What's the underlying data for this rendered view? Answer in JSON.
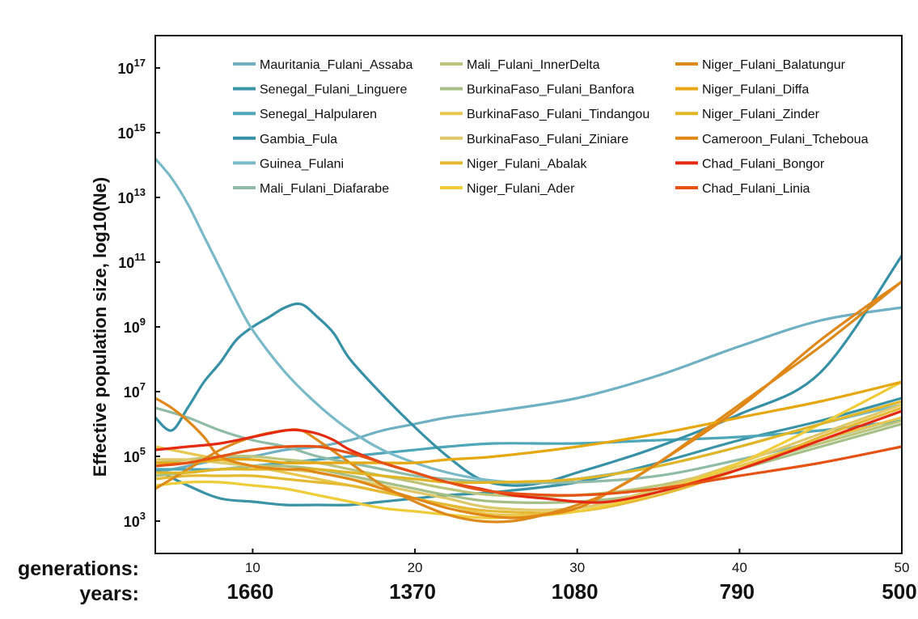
{
  "chart_data": {
    "type": "line",
    "ylabel": "Effective population size, log10(Ne)",
    "yscale": "log10",
    "ylim": [
      2.0,
      18.0
    ],
    "xlim": [
      4,
      50
    ],
    "y_ticks": [
      {
        "exp": 3,
        "base": "10",
        "power": "3"
      },
      {
        "exp": 5,
        "base": "10",
        "power": "5"
      },
      {
        "exp": 7,
        "base": "10",
        "power": "7"
      },
      {
        "exp": 9,
        "base": "10",
        "power": "9"
      },
      {
        "exp": 11,
        "base": "10",
        "power": "11"
      },
      {
        "exp": 13,
        "base": "10",
        "power": "13"
      },
      {
        "exp": 15,
        "base": "10",
        "power": "15"
      },
      {
        "exp": 17,
        "base": "10",
        "power": "17"
      }
    ],
    "x_ticks": [
      {
        "gen": 10,
        "label": "10",
        "years": "1660"
      },
      {
        "gen": 20,
        "label": "20",
        "years": "1370"
      },
      {
        "gen": 30,
        "label": "30",
        "years": "1080"
      },
      {
        "gen": 40,
        "label": "40",
        "years": "790"
      },
      {
        "gen": 50,
        "label": "50",
        "years": "500"
      }
    ],
    "generations_label": "generations:",
    "years_label": "years:",
    "legend_position": "top",
    "series": [
      {
        "name": "Mauritania_Fulani_Assaba",
        "color": "#6fb0c2",
        "x": [
          4,
          6,
          8,
          10,
          12,
          14,
          16,
          18,
          20,
          22,
          25,
          30,
          35,
          40,
          45,
          50
        ],
        "y": [
          4.5,
          4.7,
          4.9,
          5.0,
          5.2,
          5.3,
          5.5,
          5.8,
          6.0,
          6.2,
          6.4,
          6.8,
          7.5,
          8.4,
          9.2,
          9.6
        ]
      },
      {
        "name": "Senegal_Fulani_Linguere",
        "color": "#3a94a6",
        "x": [
          4,
          6,
          8,
          10,
          12,
          14,
          16,
          18,
          20,
          22,
          25,
          30,
          35,
          40,
          45,
          50
        ],
        "y": [
          4.6,
          4.1,
          3.7,
          3.6,
          3.5,
          3.5,
          3.5,
          3.6,
          3.7,
          3.8,
          3.9,
          4.2,
          4.8,
          5.5,
          6.1,
          6.8
        ]
      },
      {
        "name": "Senegal_Halpularen",
        "color": "#4ea7b8",
        "x": [
          4,
          6,
          8,
          10,
          12,
          14,
          16,
          18,
          20,
          22,
          25,
          30,
          35,
          40,
          45,
          50
        ],
        "y": [
          4.6,
          4.6,
          4.6,
          4.7,
          4.8,
          4.9,
          5.0,
          5.1,
          5.2,
          5.3,
          5.4,
          5.4,
          5.5,
          5.6,
          5.8,
          6.1
        ]
      },
      {
        "name": "Gambia_Fula",
        "color": "#3691a6",
        "x": [
          4,
          5,
          6,
          7,
          8,
          9,
          10,
          11,
          12,
          13,
          14,
          15,
          16,
          18,
          20,
          22,
          24,
          26,
          28,
          30,
          32,
          35,
          40,
          45,
          50
        ],
        "y": [
          6.2,
          5.8,
          6.5,
          7.3,
          7.9,
          8.6,
          9.0,
          9.3,
          9.6,
          9.7,
          9.3,
          8.8,
          8.0,
          6.9,
          5.9,
          5.0,
          4.3,
          4.1,
          4.2,
          4.5,
          4.8,
          5.3,
          6.3,
          7.6,
          11.2
        ]
      },
      {
        "name": "Guinea_Fulani",
        "color": "#79b9c8",
        "x": [
          4,
          5,
          6,
          7,
          8,
          9,
          10,
          12,
          14,
          16,
          18,
          20,
          22,
          24,
          26,
          28,
          30,
          35,
          40,
          45,
          50
        ],
        "y": [
          14.2,
          13.6,
          12.8,
          11.8,
          10.8,
          9.8,
          8.9,
          7.6,
          6.6,
          5.8,
          5.2,
          4.8,
          4.5,
          4.3,
          4.2,
          4.2,
          4.3,
          4.7,
          5.3,
          6.0,
          6.6
        ]
      },
      {
        "name": "Mali_Fulani_Diafarabe",
        "color": "#8fbba7",
        "x": [
          4,
          6,
          8,
          10,
          12,
          14,
          16,
          18,
          20,
          22,
          25,
          30,
          35,
          40,
          45,
          50
        ],
        "y": [
          6.5,
          6.2,
          5.8,
          5.5,
          5.3,
          5.0,
          4.8,
          4.6,
          4.4,
          4.3,
          4.2,
          4.2,
          4.4,
          4.9,
          5.5,
          6.2
        ]
      },
      {
        "name": "Mali_Fulani_InnerDelta",
        "color": "#bcc47a",
        "x": [
          4,
          6,
          8,
          10,
          12,
          14,
          16,
          18,
          20,
          22,
          25,
          30,
          35,
          40,
          45,
          50
        ],
        "y": [
          4.8,
          4.9,
          5.0,
          5.0,
          4.9,
          4.8,
          4.6,
          4.4,
          4.2,
          4.0,
          3.8,
          3.8,
          4.1,
          4.7,
          5.4,
          6.1
        ]
      },
      {
        "name": "BurkinaFaso_Fulani_Banfora",
        "color": "#a6bf86",
        "x": [
          4,
          6,
          8,
          10,
          12,
          14,
          16,
          18,
          20,
          22,
          25,
          30,
          35,
          40,
          45,
          50
        ],
        "y": [
          4.4,
          4.5,
          4.6,
          4.7,
          4.7,
          4.6,
          4.4,
          4.2,
          4.0,
          3.8,
          3.6,
          3.6,
          3.9,
          4.6,
          5.3,
          6.0
        ]
      },
      {
        "name": "BurkinaFaso_Fulani_Tindangou",
        "color": "#e9c64e",
        "x": [
          4,
          6,
          8,
          10,
          12,
          14,
          16,
          18,
          20,
          22,
          25,
          30,
          35,
          40,
          45,
          50
        ],
        "y": [
          5.3,
          5.1,
          4.9,
          4.7,
          4.5,
          4.3,
          4.1,
          3.9,
          3.7,
          3.5,
          3.2,
          3.3,
          3.9,
          4.7,
          5.5,
          6.2
        ]
      },
      {
        "name": "BurkinaFaso_Fulani_Ziniare",
        "color": "#dfc869",
        "x": [
          4,
          6,
          8,
          10,
          12,
          14,
          16,
          18,
          20,
          22,
          25,
          30,
          35,
          40,
          45,
          50
        ],
        "y": [
          4.9,
          4.9,
          4.8,
          4.7,
          4.6,
          4.5,
          4.3,
          4.1,
          3.9,
          3.7,
          3.4,
          3.4,
          4.0,
          4.8,
          5.7,
          6.6
        ]
      },
      {
        "name": "Niger_Fulani_Abalak",
        "color": "#e6b933",
        "x": [
          4,
          6,
          8,
          10,
          12,
          14,
          16,
          18,
          20,
          22,
          25,
          30,
          35,
          40,
          45,
          50
        ],
        "y": [
          4.3,
          4.4,
          4.4,
          4.4,
          4.3,
          4.2,
          4.1,
          3.9,
          3.7,
          3.5,
          3.3,
          3.3,
          3.8,
          4.6,
          5.6,
          6.5
        ]
      },
      {
        "name": "Niger_Fulani_Ader",
        "color": "#efcc3a",
        "x": [
          4,
          6,
          8,
          10,
          12,
          14,
          16,
          18,
          20,
          22,
          25,
          30,
          35,
          40,
          45,
          50
        ],
        "y": [
          4.1,
          4.2,
          4.2,
          4.1,
          4.0,
          3.8,
          3.6,
          3.4,
          3.3,
          3.2,
          3.1,
          3.3,
          3.9,
          4.8,
          6.0,
          7.3
        ]
      },
      {
        "name": "Niger_Fulani_Balatungur",
        "color": "#dd8a1b",
        "x": [
          4,
          6,
          8,
          10,
          12,
          13,
          14,
          16,
          18,
          20,
          22,
          24,
          26,
          28,
          30,
          32,
          35,
          40,
          45,
          50
        ],
        "y": [
          4.0,
          4.6,
          5.2,
          5.6,
          5.8,
          5.8,
          5.5,
          4.8,
          4.1,
          3.6,
          3.2,
          3.0,
          3.0,
          3.2,
          3.5,
          3.9,
          4.8,
          6.6,
          8.4,
          10.4
        ]
      },
      {
        "name": "Niger_Fulani_Diffa",
        "color": "#e6a711",
        "x": [
          4,
          6,
          8,
          10,
          12,
          14,
          16,
          18,
          20,
          22,
          25,
          30,
          35,
          40,
          45,
          50
        ],
        "y": [
          4.8,
          4.8,
          4.9,
          4.9,
          4.8,
          4.8,
          4.8,
          4.8,
          4.8,
          4.9,
          5.0,
          5.3,
          5.7,
          6.2,
          6.7,
          7.3
        ]
      },
      {
        "name": "Niger_Fulani_Zinder",
        "color": "#e2b524",
        "x": [
          4,
          6,
          8,
          10,
          12,
          14,
          16,
          18,
          20,
          22,
          25,
          30,
          35,
          40,
          45,
          50
        ],
        "y": [
          4.5,
          4.5,
          4.6,
          4.6,
          4.6,
          4.6,
          4.5,
          4.4,
          4.3,
          4.2,
          4.2,
          4.3,
          4.7,
          5.3,
          6.0,
          6.7
        ]
      },
      {
        "name": "Cameroon_Fulani_Tcheboua",
        "color": "#e08718",
        "x": [
          4,
          5,
          6,
          7,
          8,
          10,
          12,
          13,
          14,
          16,
          18,
          20,
          22,
          24,
          26,
          28,
          30,
          32,
          35,
          40,
          45,
          50
        ],
        "y": [
          6.8,
          6.5,
          6.1,
          5.6,
          5.0,
          4.7,
          4.6,
          4.6,
          4.5,
          4.3,
          4.0,
          3.7,
          3.4,
          3.2,
          3.1,
          3.2,
          3.4,
          3.9,
          4.8,
          6.5,
          8.6,
          10.4
        ]
      },
      {
        "name": "Chad_Fulani_Bongor",
        "color": "#e52a12",
        "x": [
          4,
          6,
          8,
          10,
          12,
          13,
          14,
          15,
          16,
          18,
          20,
          22,
          24,
          26,
          28,
          30,
          32,
          35,
          40,
          45,
          50
        ],
        "y": [
          5.2,
          5.3,
          5.4,
          5.6,
          5.8,
          5.8,
          5.7,
          5.5,
          5.2,
          4.8,
          4.5,
          4.2,
          4.0,
          3.8,
          3.7,
          3.6,
          3.6,
          3.9,
          4.6,
          5.5,
          6.4
        ]
      },
      {
        "name": "Chad_Fulani_Linia",
        "color": "#e65114",
        "x": [
          4,
          6,
          8,
          10,
          12,
          14,
          16,
          18,
          20,
          22,
          25,
          30,
          35,
          40,
          45,
          50
        ],
        "y": [
          4.7,
          4.8,
          5.0,
          5.2,
          5.3,
          5.3,
          5.1,
          4.8,
          4.5,
          4.2,
          3.9,
          3.8,
          4.0,
          4.4,
          4.8,
          5.3
        ]
      }
    ]
  }
}
